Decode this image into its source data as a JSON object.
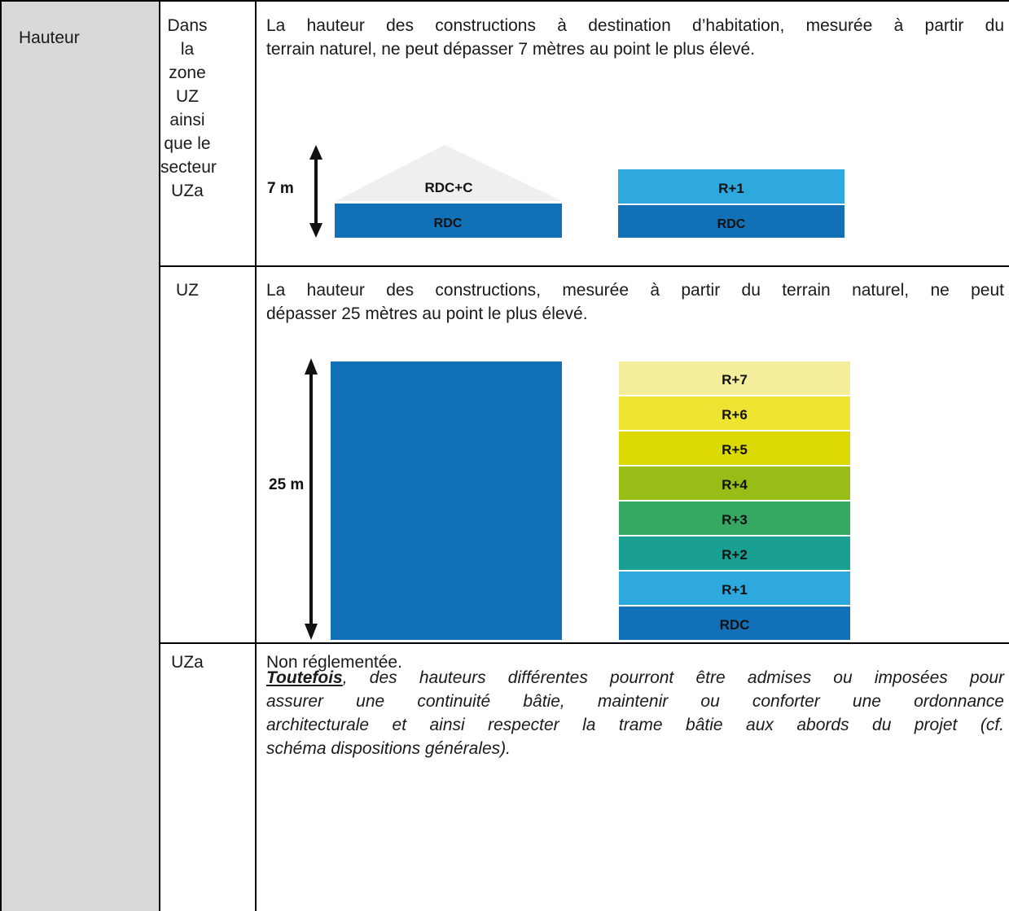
{
  "table": {
    "category": "Hauteur",
    "rows": [
      {
        "zone_lines": [
          "Dans la",
          "zone",
          "UZ",
          "ainsi",
          "que le",
          "secteur",
          "UZa"
        ],
        "text_lines": [
          "La hauteur des constructions à destination d’habitation, mesurée à partir du",
          "terrain naturel, ne peut dépasser 7 mètres au point le plus élevé."
        ]
      },
      {
        "zone_lines": [
          "UZ"
        ],
        "text_lines": [
          "La hauteur des constructions, mesurée à partir du terrain naturel, ne peut",
          "dépasser 25 mètres au point le plus élevé."
        ],
        "note_keyword": "Toutefois",
        "note_lines": [
          ", des hauteurs différentes pourront être admises ou imposées pour",
          "assurer une continuité bâtie, maintenir ou conforter une ordonnance",
          "architecturale et ainsi respecter la trame bâtie aux abords du projet (cf.",
          "schéma dispositions générales)."
        ]
      },
      {
        "zone_lines": [
          "UZa"
        ],
        "text_lines": [
          "Non réglementée."
        ]
      }
    ]
  },
  "diagram_small": {
    "height_label": "7 m",
    "roof_label": "RDC+C",
    "ground_label_left": "RDC",
    "floor_label": "R+1",
    "ground_label_right": "RDC",
    "colors": {
      "rdc": "#1170b6",
      "r1": "#2ea9de",
      "roof": "#efefef"
    }
  },
  "diagram_large": {
    "height_label": "25 m",
    "floors": [
      {
        "label": "R+7",
        "color": "#f4ed9c"
      },
      {
        "label": "R+6",
        "color": "#eee431"
      },
      {
        "label": "R+5",
        "color": "#dcd803"
      },
      {
        "label": "R+4",
        "color": "#97bd16"
      },
      {
        "label": "R+3",
        "color": "#37a864"
      },
      {
        "label": "R+2",
        "color": "#1aa092"
      },
      {
        "label": "R+1",
        "color": "#2ea9de"
      },
      {
        "label": "RDC",
        "color": "#1170b6"
      }
    ],
    "block_color": "#1170b6"
  }
}
